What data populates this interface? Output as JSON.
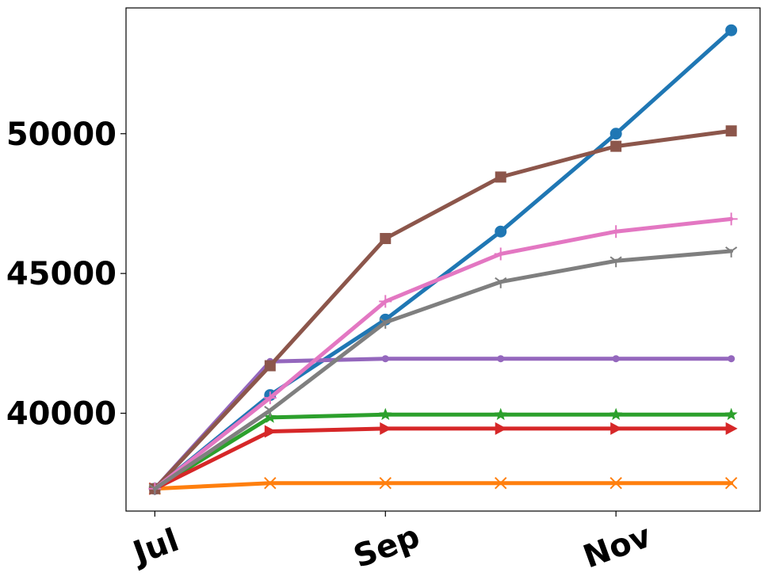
{
  "chart_data": {
    "type": "line",
    "title": "",
    "xlabel": "",
    "ylabel": "",
    "x": [
      0,
      1,
      2,
      3,
      4,
      5
    ],
    "xticks": [
      {
        "pos": 0,
        "label": "Jul"
      },
      {
        "pos": 2,
        "label": "Sep"
      },
      {
        "pos": 4,
        "label": "Nov"
      }
    ],
    "yticks": [
      40000,
      45000,
      50000
    ],
    "xlim": [
      -0.25,
      5.25
    ],
    "ylim": [
      36500,
      54500
    ],
    "grid": false,
    "legend": "none",
    "series": [
      {
        "color": "#1f77b4",
        "marker": "circle",
        "values": [
          37300,
          40650,
          43350,
          46500,
          50000,
          53700
        ]
      },
      {
        "color": "#ff7f0e",
        "marker": "x",
        "values": [
          37300,
          37500,
          37500,
          37500,
          37500,
          37500
        ]
      },
      {
        "color": "#2ca02c",
        "marker": "star",
        "values": [
          37300,
          39850,
          39950,
          39950,
          39950,
          39950
        ]
      },
      {
        "color": "#d62728",
        "marker": "triangle-right",
        "values": [
          37300,
          39350,
          39450,
          39450,
          39450,
          39450
        ]
      },
      {
        "color": "#9467bd",
        "marker": "dot",
        "values": [
          37300,
          41850,
          41950,
          41950,
          41950,
          41950
        ]
      },
      {
        "color": "#8c564b",
        "marker": "square",
        "values": [
          37300,
          41700,
          46250,
          48450,
          49550,
          50100
        ]
      },
      {
        "color": "#e377c2",
        "marker": "plus",
        "values": [
          37300,
          40550,
          44000,
          45700,
          46500,
          46950
        ]
      },
      {
        "color": "#7f7f7f",
        "marker": "tri",
        "values": [
          37300,
          40100,
          43250,
          44700,
          45450,
          45800
        ]
      }
    ]
  }
}
